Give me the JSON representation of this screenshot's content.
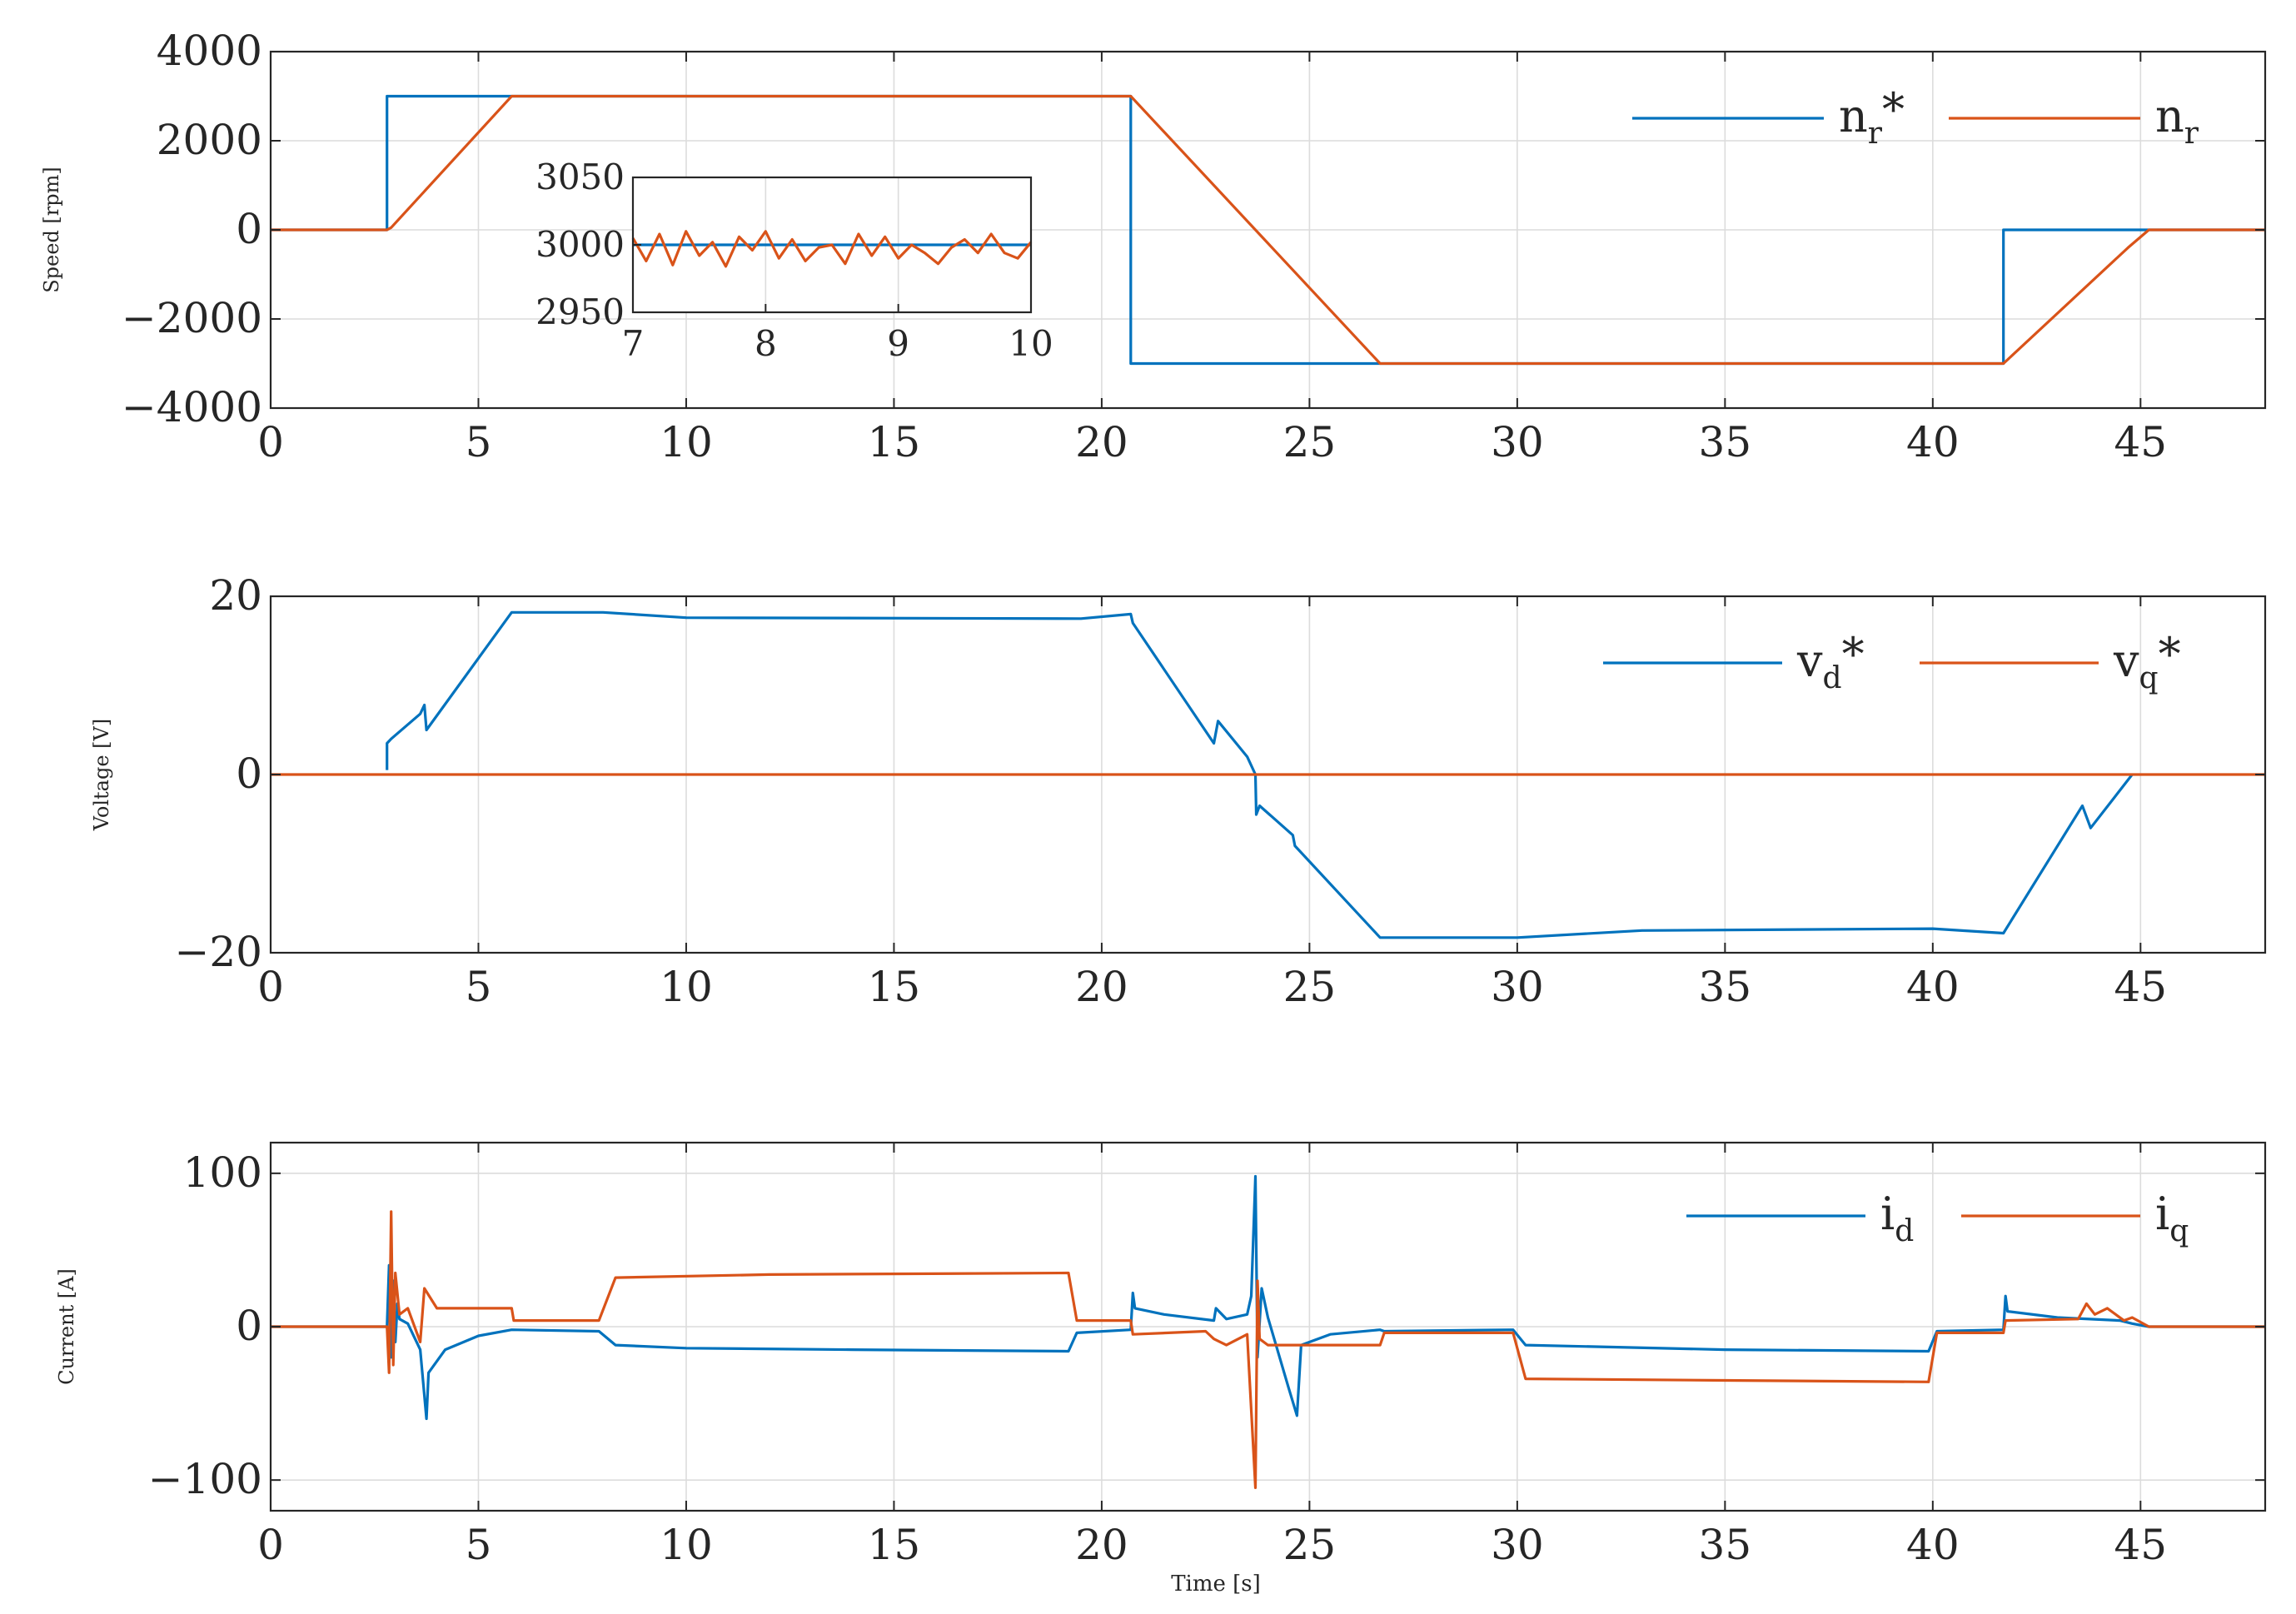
{
  "colors": {
    "series1": "#0072BD",
    "series2": "#D95319"
  },
  "x_axis_label": "Time [s]",
  "chart_data": [
    {
      "type": "line",
      "ylabel": "Speed [rpm]",
      "xlim": [
        0,
        48
      ],
      "ylim": [
        -4000,
        4000
      ],
      "x_ticks": [
        0,
        5,
        10,
        15,
        20,
        25,
        30,
        35,
        40,
        45
      ],
      "y_ticks": [
        -4000,
        -2000,
        0,
        2000,
        4000
      ],
      "y_tick_labels": [
        "−4000",
        "−2000",
        "0",
        "2000",
        "4000"
      ],
      "legend_position": "top-right",
      "series": [
        {
          "name": "n_r*",
          "legend_main": "n",
          "legend_sub": "r",
          "legend_suffix": "*",
          "x": [
            0,
            2.8,
            2.8,
            20.7,
            20.7,
            41.7,
            41.7,
            48
          ],
          "y": [
            0,
            0,
            3000,
            3000,
            -3000,
            -3000,
            0,
            0
          ]
        },
        {
          "name": "n_r",
          "legend_main": "n",
          "legend_sub": "r",
          "legend_suffix": "",
          "x": [
            0,
            2.8,
            2.9,
            5.8,
            20.7,
            23.7,
            26.7,
            41.7,
            44.7,
            45.2,
            48
          ],
          "y": [
            0,
            0,
            50,
            3000,
            3000,
            0,
            -3000,
            -3000,
            -400,
            0,
            0
          ]
        }
      ],
      "inset": {
        "xlim": [
          7,
          10
        ],
        "ylim": [
          2950,
          3050
        ],
        "x_ticks": [
          7,
          8,
          9,
          10
        ],
        "y_ticks": [
          2950,
          3000,
          3050
        ],
        "series": [
          {
            "name": "n_r*",
            "x": [
              7,
              10
            ],
            "y": [
              3000,
              3000
            ]
          },
          {
            "name": "n_r",
            "x": [
              7.0,
              7.1,
              7.2,
              7.3,
              7.4,
              7.5,
              7.6,
              7.7,
              7.8,
              7.9,
              8.0,
              8.1,
              8.2,
              8.3,
              8.4,
              8.5,
              8.6,
              8.7,
              8.8,
              8.9,
              9.0,
              9.1,
              9.2,
              9.3,
              9.4,
              9.5,
              9.6,
              9.7,
              9.8,
              9.9,
              10.0
            ],
            "y": [
              3005,
              2988,
              3008,
              2985,
              3010,
              2992,
              3002,
              2984,
              3006,
              2996,
              3010,
              2990,
              3004,
              2988,
              2998,
              3000,
              2986,
              3008,
              2992,
              3006,
              2990,
              3000,
              2994,
              2986,
              2998,
              3004,
              2994,
              3008,
              2994,
              2990,
              3002
            ]
          }
        ]
      }
    },
    {
      "type": "line",
      "ylabel": "Voltage [V]",
      "xlim": [
        0,
        48
      ],
      "ylim": [
        -20,
        20
      ],
      "x_ticks": [
        0,
        5,
        10,
        15,
        20,
        25,
        30,
        35,
        40,
        45
      ],
      "y_ticks": [
        -20,
        0,
        20
      ],
      "y_tick_labels": [
        "−20",
        "0",
        "20"
      ],
      "legend_position": "top-right",
      "series": [
        {
          "name": "v_d*",
          "legend_main": "v",
          "legend_sub": "d",
          "legend_suffix": "*",
          "x": [
            2.8,
            2.8,
            2.9,
            3.6,
            3.7,
            3.75,
            5.8,
            8.0,
            10.0,
            19.5,
            20.7,
            20.75,
            22.7,
            22.8,
            23.5,
            23.7,
            23.72,
            23.8,
            24.6,
            24.65,
            26.7,
            30.0,
            33.0,
            40.0,
            41.7,
            43.6,
            43.8,
            44.8
          ],
          "y": [
            0.5,
            3.5,
            4.0,
            6.8,
            7.8,
            5.0,
            18.2,
            18.2,
            17.6,
            17.5,
            18.0,
            17.0,
            3.5,
            6.0,
            2.0,
            0.0,
            -4.5,
            -3.5,
            -6.8,
            -8.0,
            -18.3,
            -18.3,
            -17.5,
            -17.3,
            -17.8,
            -3.5,
            -6.0,
            0.0
          ]
        },
        {
          "name": "v_q*",
          "legend_main": "v",
          "legend_sub": "q",
          "legend_suffix": "*",
          "x": [
            0,
            48
          ],
          "y": [
            0,
            0
          ]
        }
      ]
    },
    {
      "type": "line",
      "ylabel": "Current [A]",
      "xlim": [
        0,
        48
      ],
      "ylim": [
        -120,
        120
      ],
      "x_ticks": [
        0,
        5,
        10,
        15,
        20,
        25,
        30,
        35,
        40,
        45
      ],
      "y_ticks": [
        -100,
        0,
        100
      ],
      "y_tick_labels": [
        "−100",
        "0",
        "100"
      ],
      "legend_position": "top-right",
      "series": [
        {
          "name": "i_d",
          "legend_main": "i",
          "legend_sub": "d",
          "legend_suffix": "",
          "x": [
            0,
            2.8,
            2.85,
            2.9,
            2.95,
            3.0,
            3.05,
            3.1,
            3.3,
            3.6,
            3.75,
            3.8,
            4.2,
            5.0,
            5.8,
            7.9,
            8.3,
            10.0,
            14.0,
            19.2,
            19.4,
            20.7,
            20.75,
            20.8,
            21.5,
            22.7,
            22.75,
            23.0,
            23.5,
            23.6,
            23.7,
            23.75,
            23.85,
            24.0,
            24.5,
            24.7,
            24.8,
            25.5,
            26.7,
            26.8,
            29.9,
            30.2,
            35.0,
            39.9,
            40.1,
            41.7,
            41.75,
            41.8,
            43.0,
            44.5,
            44.8,
            45.2,
            48
          ],
          "y": [
            0,
            0,
            40,
            -20,
            30,
            -10,
            15,
            5,
            2,
            -15,
            -60,
            -30,
            -15,
            -6,
            -2,
            -3,
            -12,
            -14,
            -15,
            -16,
            -4,
            -2,
            22,
            12,
            8,
            4,
            12,
            5,
            8,
            20,
            98,
            -20,
            25,
            6,
            -40,
            -58,
            -12,
            -5,
            -2,
            -3,
            -2,
            -12,
            -15,
            -16,
            -3,
            -2,
            20,
            10,
            6,
            4,
            2,
            0,
            0
          ]
        },
        {
          "name": "i_q",
          "legend_main": "i",
          "legend_sub": "q",
          "legend_suffix": "",
          "x": [
            0,
            2.8,
            2.85,
            2.9,
            2.95,
            3.0,
            3.1,
            3.3,
            3.6,
            3.7,
            4.0,
            5.8,
            5.85,
            7.9,
            8.3,
            12.0,
            19.2,
            19.4,
            20.7,
            20.75,
            22.5,
            22.7,
            23.0,
            23.5,
            23.7,
            23.75,
            23.8,
            24.0,
            26.7,
            26.8,
            29.9,
            30.2,
            35.0,
            39.9,
            40.1,
            41.7,
            41.75,
            43.5,
            43.7,
            43.9,
            44.2,
            44.6,
            44.8,
            45.2,
            48
          ],
          "y": [
            0,
            0,
            -30,
            75,
            -25,
            35,
            8,
            12,
            -10,
            25,
            12,
            12,
            4,
            4,
            32,
            34,
            35,
            4,
            4,
            -5,
            -3,
            -8,
            -12,
            -5,
            -105,
            30,
            -8,
            -12,
            -12,
            -4,
            -4,
            -34,
            -35,
            -36,
            -4,
            -4,
            4,
            5,
            15,
            8,
            12,
            4,
            6,
            0,
            0
          ]
        }
      ]
    }
  ]
}
